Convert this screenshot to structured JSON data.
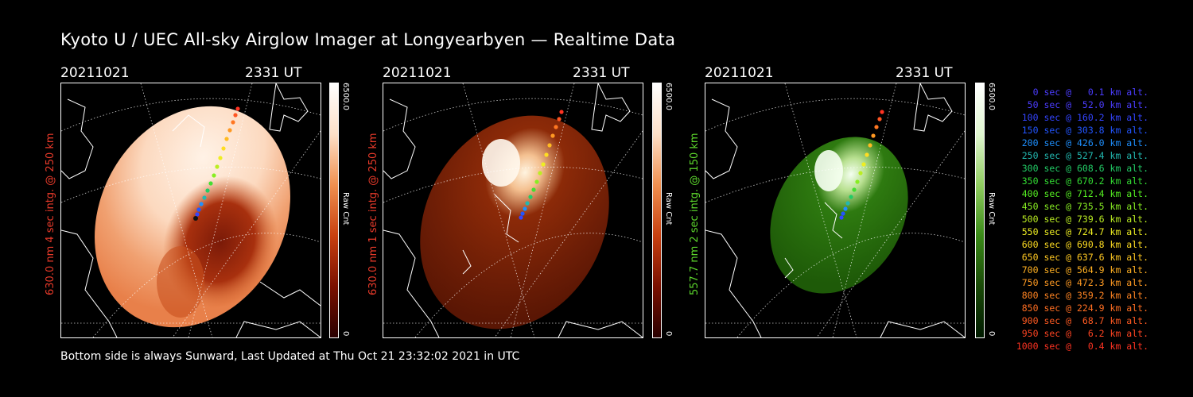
{
  "title": "Kyoto U / UEC All-sky Airglow Imager at Longyearbyen — Realtime Data",
  "footer": "Bottom side is always Sunward, Last Updated at Thu Oct 21 23:32:02 2021 in UTC",
  "panels": [
    {
      "date": "20211021",
      "time": "2331 UT",
      "label": "630.0 nm 4 sec intg. @ 250 km",
      "label_color": "#e83a2a",
      "cbar_max": "6500.0",
      "cbar_min": "0",
      "cbar_unit": "Raw Cnt",
      "colormap": "red-white"
    },
    {
      "date": "20211021",
      "time": "2331 UT",
      "label": "630.0 nm 1 sec intg. @ 250 km",
      "label_color": "#e83a2a",
      "cbar_max": "6500.0",
      "cbar_min": "0",
      "cbar_unit": "Raw Cnt",
      "colormap": "red-white"
    },
    {
      "date": "20211021",
      "time": "2331 UT",
      "label": "557.7 nm 2 sec intg. @ 150 km",
      "label_color": "#5cd62c",
      "cbar_max": "6500.0",
      "cbar_min": "0",
      "cbar_unit": "Raw Cnt",
      "colormap": "green-white"
    }
  ],
  "legend": [
    {
      "text": "0 sec @   0.1 km alt.",
      "color": "#4b3cff"
    },
    {
      "text": "50 sec @  52.0 km alt.",
      "color": "#4b3cff"
    },
    {
      "text": "100 sec @ 160.2 km alt.",
      "color": "#3344ff"
    },
    {
      "text": "150 sec @ 303.8 km alt.",
      "color": "#2255ff"
    },
    {
      "text": "200 sec @ 426.0 km alt.",
      "color": "#1e90ff"
    },
    {
      "text": "250 sec @ 527.4 km alt.",
      "color": "#22b8b0"
    },
    {
      "text": "300 sec @ 608.6 km alt.",
      "color": "#22cc66"
    },
    {
      "text": "350 sec @ 670.2 km alt.",
      "color": "#33dd33"
    },
    {
      "text": "400 sec @ 712.4 km alt.",
      "color": "#55ee22"
    },
    {
      "text": "450 sec @ 735.5 km alt.",
      "color": "#88ee22"
    },
    {
      "text": "500 sec @ 739.6 km alt.",
      "color": "#bbee22"
    },
    {
      "text": "550 sec @ 724.7 km alt.",
      "color": "#eeee22"
    },
    {
      "text": "600 sec @ 690.8 km alt.",
      "color": "#ffdd22"
    },
    {
      "text": "650 sec @ 637.6 km alt.",
      "color": "#ffc822"
    },
    {
      "text": "700 sec @ 564.9 km alt.",
      "color": "#ffb022"
    },
    {
      "text": "750 sec @ 472.3 km alt.",
      "color": "#ff9a22"
    },
    {
      "text": "800 sec @ 359.2 km alt.",
      "color": "#ff8422"
    },
    {
      "text": "850 sec @ 224.9 km alt.",
      "color": "#ff6e22"
    },
    {
      "text": "900 sec @  68.7 km alt.",
      "color": "#ff5a22"
    },
    {
      "text": "950 sec @   6.2 km alt.",
      "color": "#ff4422"
    },
    {
      "text": "1000 sec @   0.4 km alt.",
      "color": "#ff3322"
    }
  ]
}
